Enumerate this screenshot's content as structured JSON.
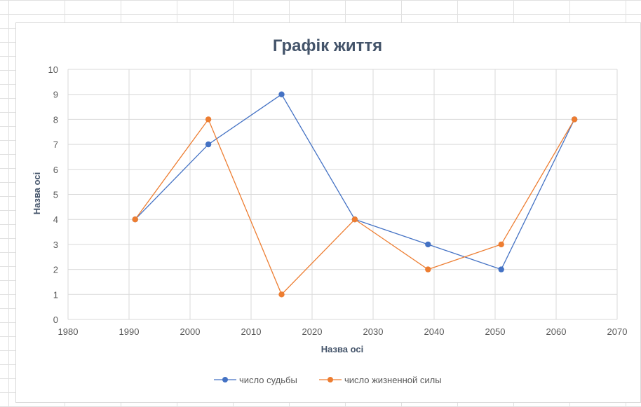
{
  "chart_data": {
    "type": "scatter",
    "title": "Графік життя",
    "xlabel": "Назва осі",
    "ylabel": "Назва осі",
    "xlim": [
      1980,
      2070
    ],
    "ylim": [
      0,
      10
    ],
    "xticks": [
      1980,
      1990,
      2000,
      2010,
      2020,
      2030,
      2040,
      2050,
      2060,
      2070
    ],
    "yticks": [
      0,
      1,
      2,
      3,
      4,
      5,
      6,
      7,
      8,
      9,
      10
    ],
    "grid": true,
    "legend_position": "bottom",
    "x": [
      1991,
      2003,
      2015,
      2027,
      2039,
      2051,
      2063
    ],
    "series": [
      {
        "name": "число судьбы",
        "color": "#4472c4",
        "values": [
          4,
          7,
          9,
          4,
          3,
          2,
          8
        ]
      },
      {
        "name": "число жизненной силы",
        "color": "#ed7d31",
        "values": [
          4,
          8,
          1,
          4,
          2,
          3,
          8
        ]
      }
    ]
  }
}
